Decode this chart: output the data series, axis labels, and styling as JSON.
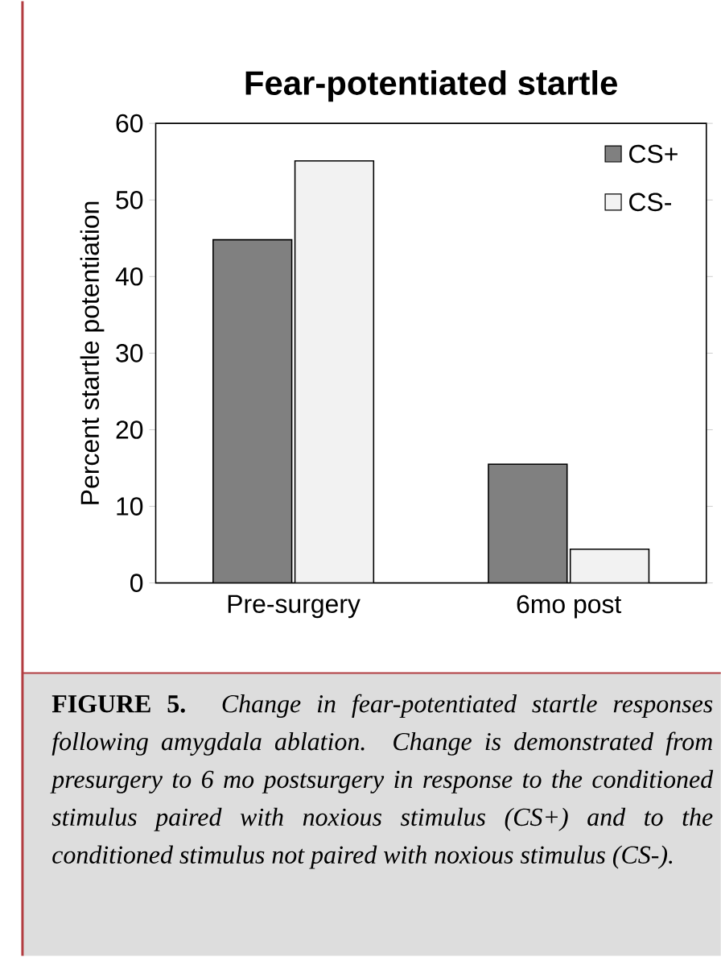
{
  "chart_data": {
    "type": "bar",
    "title": "Fear-potentiated startle",
    "ylabel": "Percent startle potentiation",
    "categories": [
      "Pre-surgery",
      "6mo post"
    ],
    "series": [
      {
        "name": "CS+",
        "color": "#808080",
        "values": [
          44.8,
          15.5
        ]
      },
      {
        "name": "CS-",
        "color": "#f2f2f2",
        "values": [
          55.1,
          4.4
        ]
      }
    ],
    "ylim": [
      0,
      60
    ],
    "yticks": [
      0,
      10,
      20,
      30,
      40,
      50,
      60
    ],
    "legend": "top right",
    "grid": false,
    "annotations": [
      "**FIGURE 5.** *Change in fear-potentiated startle responses following amygdala ablation. Change is demonstrated from presurgery to 6 mo postsurgery in response to the conditioned stimulus paired with noxious stimulus (CS+) and to the conditioned stimulus not paired with noxious stimulus (CS-).*"
    ]
  }
}
